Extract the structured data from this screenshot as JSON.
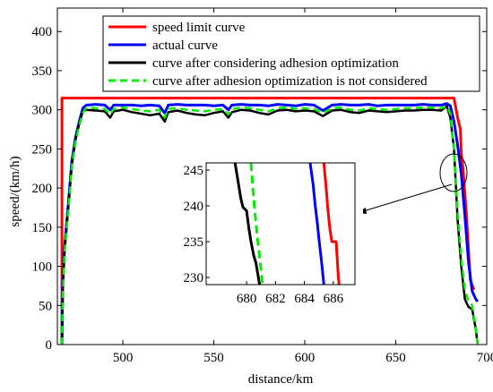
{
  "chart_data": {
    "type": "line",
    "xlabel": "distance/km",
    "ylabel": "speed/(km/h)",
    "xlim": [
      464,
      700
    ],
    "ylim": [
      0,
      430
    ],
    "xticks": [
      500,
      550,
      600,
      650,
      700
    ],
    "yticks": [
      0,
      50,
      100,
      150,
      200,
      250,
      300,
      350,
      400
    ],
    "grid": false,
    "legend_position": "top-right",
    "series": [
      {
        "name": "speed limit curve",
        "color": "#ff0000",
        "dash": "solid",
        "x": [
          466.5,
          466.5,
          467,
          682,
          684,
          685.5,
          686,
          687,
          689,
          691,
          693
        ],
        "y": [
          0,
          315,
          315,
          315,
          290,
          275,
          245,
          225,
          160,
          82,
          70
        ]
      },
      {
        "name": "actual curve",
        "color": "#0000ff",
        "dash": "solid",
        "x": [
          466.5,
          467,
          468,
          470,
          472,
          474,
          476,
          478,
          480,
          485,
          490,
          493,
          495,
          500,
          505,
          510,
          515,
          520,
          523,
          525,
          530,
          535,
          540,
          545,
          550,
          555,
          558,
          560,
          565,
          570,
          575,
          580,
          585,
          590,
          595,
          600,
          605,
          610,
          615,
          620,
          625,
          630,
          635,
          640,
          645,
          650,
          655,
          660,
          665,
          670,
          675,
          678,
          680,
          682,
          684,
          686,
          688,
          690,
          692,
          694,
          695
        ],
        "y": [
          0,
          85,
          125,
          180,
          235,
          265,
          285,
          302,
          306,
          307,
          306,
          300,
          306,
          306,
          306,
          305,
          306,
          305,
          296,
          306,
          307,
          306,
          306,
          306,
          305,
          306,
          300,
          306,
          307,
          306,
          306,
          305,
          307,
          306,
          305,
          307,
          306,
          299,
          306,
          307,
          306,
          306,
          307,
          305,
          306,
          306,
          306,
          306,
          307,
          306,
          306,
          308,
          305,
          285,
          255,
          218,
          165,
          105,
          68,
          58,
          55
        ]
      },
      {
        "name": "curve after considering adhesion optimization",
        "color": "#000000",
        "dash": "solid",
        "x": [
          466.5,
          467,
          468,
          470,
          472,
          474,
          476,
          478,
          480,
          485,
          490,
          493,
          495,
          500,
          505,
          510,
          515,
          520,
          523,
          525,
          530,
          535,
          540,
          545,
          550,
          555,
          558,
          560,
          565,
          570,
          575,
          580,
          585,
          590,
          595,
          600,
          605,
          610,
          615,
          620,
          625,
          630,
          635,
          640,
          645,
          650,
          655,
          660,
          665,
          670,
          675,
          678,
          680,
          682,
          684,
          686,
          688,
          690,
          692,
          694,
          695
        ],
        "y": [
          0,
          70,
          120,
          175,
          230,
          262,
          282,
          298,
          300,
          299,
          298,
          290,
          298,
          300,
          297,
          295,
          293,
          295,
          285,
          297,
          299,
          296,
          294,
          293,
          296,
          298,
          290,
          297,
          300,
          299,
          296,
          294,
          299,
          300,
          298,
          299,
          298,
          292,
          299,
          300,
          297,
          296,
          299,
          298,
          297,
          298,
          299,
          299,
          300,
          300,
          299,
          305,
          290,
          250,
          160,
          100,
          58,
          48,
          45,
          20,
          0
        ]
      },
      {
        "name": "curve after adhesion optimization is not considered",
        "color": "#00ee00",
        "dash": "dashed",
        "x": [
          466.5,
          467,
          468,
          470,
          472,
          474,
          476,
          478,
          480,
          485,
          490,
          493,
          495,
          500,
          505,
          510,
          515,
          520,
          523,
          525,
          530,
          535,
          540,
          545,
          550,
          555,
          558,
          560,
          565,
          570,
          575,
          580,
          585,
          590,
          595,
          600,
          605,
          610,
          615,
          620,
          625,
          630,
          635,
          640,
          645,
          650,
          655,
          660,
          665,
          670,
          675,
          678,
          680,
          682,
          684,
          686,
          688,
          690,
          692,
          694,
          695
        ],
        "y": [
          0,
          68,
          118,
          172,
          228,
          260,
          280,
          296,
          303,
          302,
          301,
          294,
          301,
          303,
          301,
          299,
          298,
          300,
          290,
          301,
          302,
          300,
          299,
          298,
          300,
          301,
          294,
          301,
          303,
          302,
          300,
          298,
          302,
          303,
          301,
          302,
          301,
          296,
          302,
          303,
          300,
          299,
          302,
          301,
          300,
          301,
          302,
          302,
          303,
          303,
          302,
          305,
          295,
          250,
          170,
          110,
          70,
          55,
          50,
          22,
          0
        ]
      }
    ],
    "inset": {
      "xlim": [
        677.2,
        687.5
      ],
      "ylim": [
        229,
        246
      ],
      "xticks": [
        680,
        682,
        684,
        686
      ],
      "yticks": [
        230,
        235,
        240,
        245
      ],
      "series": [
        {
          "name": "speed limit curve",
          "x": [
            685.35,
            685.55,
            685.6,
            685.75,
            685.9,
            685.95,
            686.2,
            686.35,
            686.4
          ],
          "y": [
            246,
            241.5,
            240,
            237,
            235,
            235,
            235,
            230,
            229
          ]
        },
        {
          "name": "actual curve",
          "x": [
            684.4,
            684.6,
            684.75,
            684.9,
            685.0,
            685.2,
            685.35
          ],
          "y": [
            246,
            243,
            240,
            237.5,
            235.5,
            232,
            229
          ]
        },
        {
          "name": "curve after considering adhesion optimization",
          "x": [
            679.2,
            679.4,
            679.6,
            679.75,
            680.0,
            680.15,
            680.3,
            680.5,
            680.65,
            680.9
          ],
          "y": [
            246,
            243.5,
            241,
            239.8,
            239.3,
            237,
            235,
            233,
            232,
            229
          ]
        },
        {
          "name": "curve after adhesion optimization is not considered",
          "x": [
            680.3,
            680.45,
            680.6,
            680.75,
            680.95,
            681.1
          ],
          "y": [
            246,
            242,
            238.5,
            235.5,
            232,
            229
          ]
        }
      ]
    }
  }
}
